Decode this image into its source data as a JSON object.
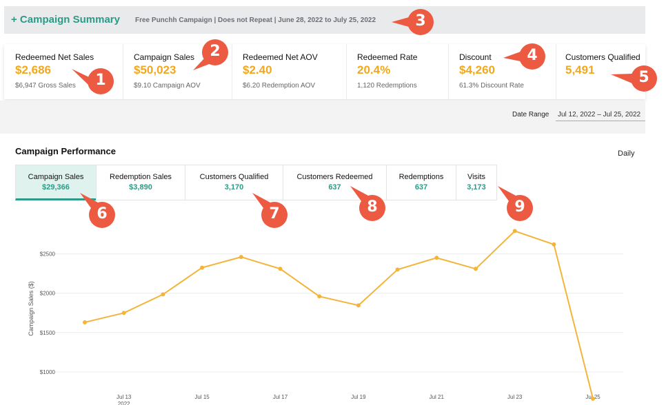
{
  "summary": {
    "title": "+ Campaign Summary",
    "subtitle": "Free Punchh Campaign | Does not Repeat | June 28, 2022 to July 25, 2022"
  },
  "kpis": [
    {
      "label": "Redeemed Net Sales",
      "value": "$2,686",
      "sub": "$6,947 Gross Sales"
    },
    {
      "label": "Campaign Sales",
      "value": "$50,023",
      "sub": "$9.10 Campaign AOV"
    },
    {
      "label": "Redeemed Net AOV",
      "value": "$2.40",
      "sub": "$6.20 Redemption AOV"
    },
    {
      "label": "Redeemed Rate",
      "value": "20.4%",
      "sub": "1,120 Redemptions"
    },
    {
      "label": "Discount",
      "value": "$4,260",
      "sub": "61.3% Discount Rate"
    },
    {
      "label": "Customers Qualified",
      "value": "5,491",
      "sub": ""
    }
  ],
  "date_range": {
    "label": "Date Range",
    "value": "Jul 12, 2022 – Jul 25, 2022"
  },
  "performance": {
    "title": "Campaign Performance",
    "granularity": "Daily",
    "tabs": [
      {
        "label": "Campaign Sales",
        "value": "$29,366",
        "active": true
      },
      {
        "label": "Redemption Sales",
        "value": "$3,890"
      },
      {
        "label": "Customers Qualified",
        "value": "3,170"
      },
      {
        "label": "Customers Redeemed",
        "value": "637"
      },
      {
        "label": "Redemptions",
        "value": "637"
      },
      {
        "label": "Visits",
        "value": "3,173"
      }
    ]
  },
  "callouts": [
    "1",
    "2",
    "3",
    "4",
    "5",
    "6",
    "7",
    "8",
    "9"
  ],
  "colors": {
    "accent": "#2b9a86",
    "value": "#f2a81d",
    "line": "#f3b43a",
    "callout": "#ec5a42"
  },
  "chart_data": {
    "type": "line",
    "ylabel": "Campaign Sales ($)",
    "x": [
      "Jul 12",
      "Jul 13",
      "Jul 14",
      "Jul 15",
      "Jul 16",
      "Jul 17",
      "Jul 18",
      "Jul 19",
      "Jul 20",
      "Jul 21",
      "Jul 22",
      "Jul 23",
      "Jul 24",
      "Jul 25"
    ],
    "xticks": [
      "Jul 13",
      "Jul 15",
      "Jul 17",
      "Jul 19",
      "Jul 21",
      "Jul 23",
      "Jul 25"
    ],
    "xtick_sub": "2022",
    "yticks": [
      1000,
      1500,
      2000,
      2500
    ],
    "ytick_labels": [
      "$1000",
      "$1500",
      "$2000",
      "$2500"
    ],
    "ylim": [
      650,
      2750
    ],
    "series": [
      {
        "values": [
          1630,
          1750,
          1985,
          2325,
          2460,
          2310,
          1960,
          1845,
          2300,
          2450,
          2310,
          2790,
          2620,
          660
        ]
      }
    ],
    "grid": true
  }
}
